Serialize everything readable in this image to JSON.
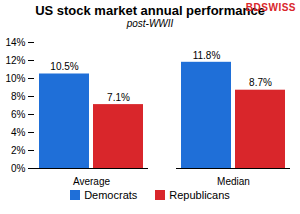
{
  "chart_data": {
    "type": "bar",
    "title": "US stock market annual performance",
    "subtitle": "post-WWII",
    "annotations": [
      "BDSWISS"
    ],
    "categories": [
      "Average",
      "Median"
    ],
    "series": [
      {
        "name": "Democrats",
        "color": "#1f6fd8",
        "values": [
          10.5,
          11.8
        ],
        "value_labels": [
          "10.5%",
          "11.8%"
        ]
      },
      {
        "name": "Republicans",
        "color": "#d9262b",
        "values": [
          7.1,
          8.7
        ],
        "value_labels": [
          "7.1%",
          "8.7%"
        ]
      }
    ],
    "ylim": [
      0,
      14
    ],
    "yticks": [
      {
        "value": 0,
        "label": "0%"
      },
      {
        "value": 2,
        "label": "2%"
      },
      {
        "value": 4,
        "label": "4%"
      },
      {
        "value": 6,
        "label": "6%"
      },
      {
        "value": 8,
        "label": "8%"
      },
      {
        "value": 10,
        "label": "10%"
      },
      {
        "value": 12,
        "label": "12%"
      },
      {
        "value": 14,
        "label": "14%"
      }
    ],
    "grid": false,
    "data_labels": true,
    "legend": "bottom"
  }
}
